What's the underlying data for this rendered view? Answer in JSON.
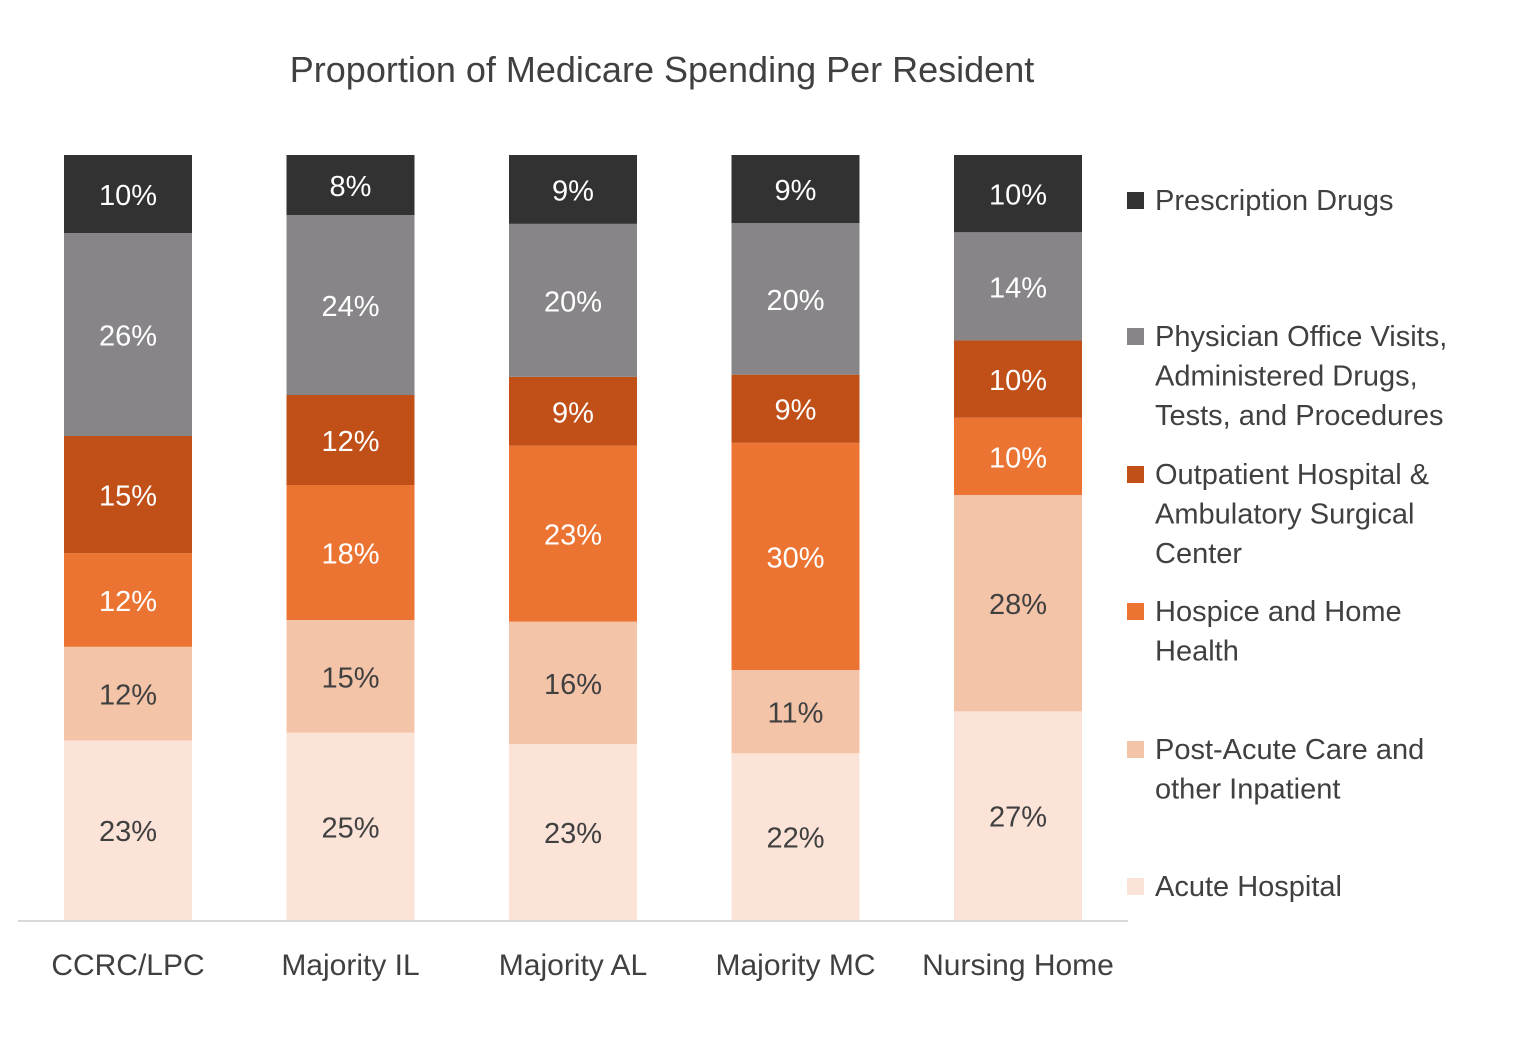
{
  "chart_data": {
    "type": "bar",
    "stacked": true,
    "normalized": true,
    "title": "Proportion of Medicare Spending Per Resident",
    "xlabel": "",
    "ylabel": "",
    "ylim": [
      0,
      100
    ],
    "grid": false,
    "legend_position": "right",
    "categories": [
      "CCRC/LPC",
      "Majority IL",
      "Majority AL",
      "Majority MC",
      "Nursing Home"
    ],
    "series": [
      {
        "name": "Acute Hospital",
        "color": "#fbe3d8",
        "label_color": "#404040",
        "values": [
          23,
          25,
          23,
          22,
          27
        ]
      },
      {
        "name": "Post-Acute Care and other Inpatient",
        "color": "#f4c4a8",
        "label_color": "#404040",
        "values": [
          12,
          15,
          16,
          11,
          28
        ]
      },
      {
        "name": "Hospice and Home Health",
        "color": "#ec7433",
        "label_color": "#ffffff",
        "values": [
          12,
          18,
          23,
          30,
          10
        ]
      },
      {
        "name": "Outpatient Hospital & Ambulatory Surgical Center",
        "color": "#c14f18",
        "label_color": "#ffffff",
        "values": [
          15,
          12,
          9,
          9,
          10
        ]
      },
      {
        "name": "Physician Office Visits, Administered Drugs, Tests, and Procedures",
        "color": "#888589",
        "label_color": "#ffffff",
        "values": [
          26,
          24,
          20,
          20,
          14
        ]
      },
      {
        "name": "Prescription Drugs",
        "color": "#323232",
        "label_color": "#ffffff",
        "values": [
          10,
          8,
          9,
          9,
          10
        ]
      }
    ],
    "legend_lines": [
      [
        "Prescription Drugs"
      ],
      [
        "Physician Office Visits,",
        "Administered Drugs,",
        "Tests, and Procedures"
      ],
      [
        "Outpatient Hospital &",
        "Ambulatory Surgical",
        "Center"
      ],
      [
        "Hospice and Home",
        "Health"
      ],
      [
        "Post-Acute Care and",
        "other Inpatient"
      ],
      [
        "Acute Hospital"
      ]
    ],
    "value_suffix": "%"
  }
}
